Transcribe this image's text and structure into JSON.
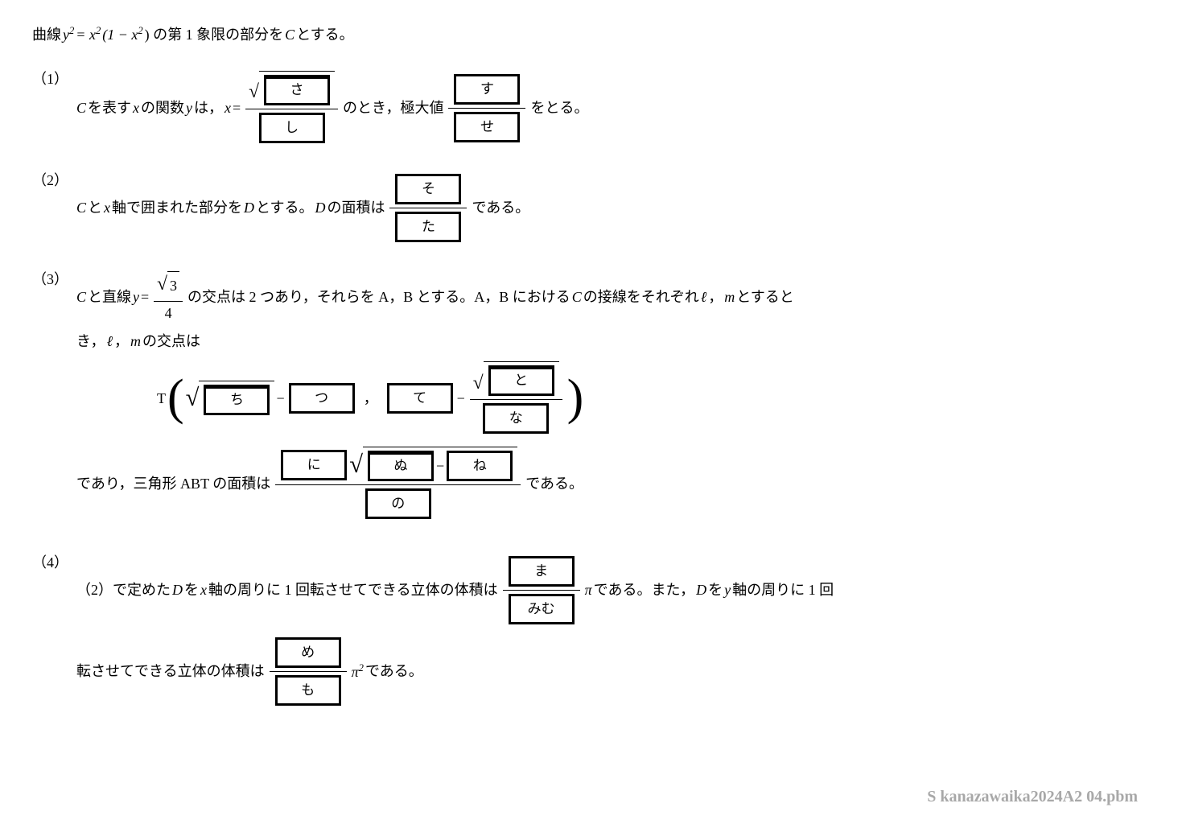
{
  "intro_a": "曲線 ",
  "intro_eq_y": "y",
  "intro_eq_rest": " = x",
  "intro_eq_tail": "(1 − x",
  "intro_eq_close": ") の第 1 象限の部分を ",
  "intro_C": "C",
  "intro_end": " とする。",
  "num1": "（1）",
  "q1_a": "C",
  "q1_b": " を表す ",
  "q1_x1": "x",
  "q1_c": " の関数 ",
  "q1_y": "y",
  "q1_d": " は，",
  "q1_x2": "x",
  "q1_eq": " = ",
  "box_sa": "さ",
  "box_shi": "し",
  "q1_e": " のとき，極大値 ",
  "box_su": "す",
  "box_se": "せ",
  "q1_f": " をとる。",
  "num2": "（2）",
  "q2_a": "C",
  "q2_b": " と ",
  "q2_x": "x",
  "q2_c": " 軸で囲まれた部分を ",
  "q2_D": "D",
  "q2_d": " とする。",
  "q2_D2": "D",
  "q2_e": " の面積は ",
  "box_so": "そ",
  "box_ta": "た",
  "q2_f": " である。",
  "num3": "（3）",
  "q3_a": "C",
  "q3_b": " と直線 ",
  "q3_y": "y",
  "q3_eq": " = ",
  "q3_sqrt3": "3",
  "q3_four": "4",
  "q3_c": " の交点は 2 つあり，それらを A，B とする。A，B における ",
  "q3_C2": "C",
  "q3_d": " の接線をそれぞれ ",
  "q3_l": "ℓ",
  "q3_comma": "，",
  "q3_m": "m",
  "q3_e": " とすると",
  "q3_f": "き，",
  "q3_l2": "ℓ",
  "q3_m2": "m",
  "q3_g": " の交点は",
  "q3_T": "T",
  "box_chi": "ち",
  "q3_minus1": " − ",
  "box_tsu": "つ",
  "q3_bigcomma": "，",
  "box_te": "て",
  "q3_minus2": " − ",
  "box_to": "と",
  "box_na": "な",
  "q3_h": "であり，三角形 ABT の面積は ",
  "box_ni": "に",
  "box_nu": "ぬ",
  "q3_minus3": " − ",
  "box_ne": "ね",
  "box_no": "の",
  "q3_i": " である。",
  "num4": "（4）",
  "q4_a": "（2）で定めた ",
  "q4_D": "D",
  "q4_b": " を ",
  "q4_x": "x",
  "q4_c": " 軸の周りに 1 回転させてできる立体の体積は ",
  "box_ma": "ま",
  "box_mimu": "みむ",
  "q4_pi1": "π",
  "q4_d": " である。また，",
  "q4_D2": "D",
  "q4_e": " を ",
  "q4_y": "y",
  "q4_f": " 軸の周りに 1 回",
  "q4_g": "転させてできる立体の体積は ",
  "box_me": "め",
  "box_mo": "も",
  "q4_pi2": "π",
  "q4_h": " である。",
  "watermark": "S kanazawaika2024A2 04.pbm"
}
